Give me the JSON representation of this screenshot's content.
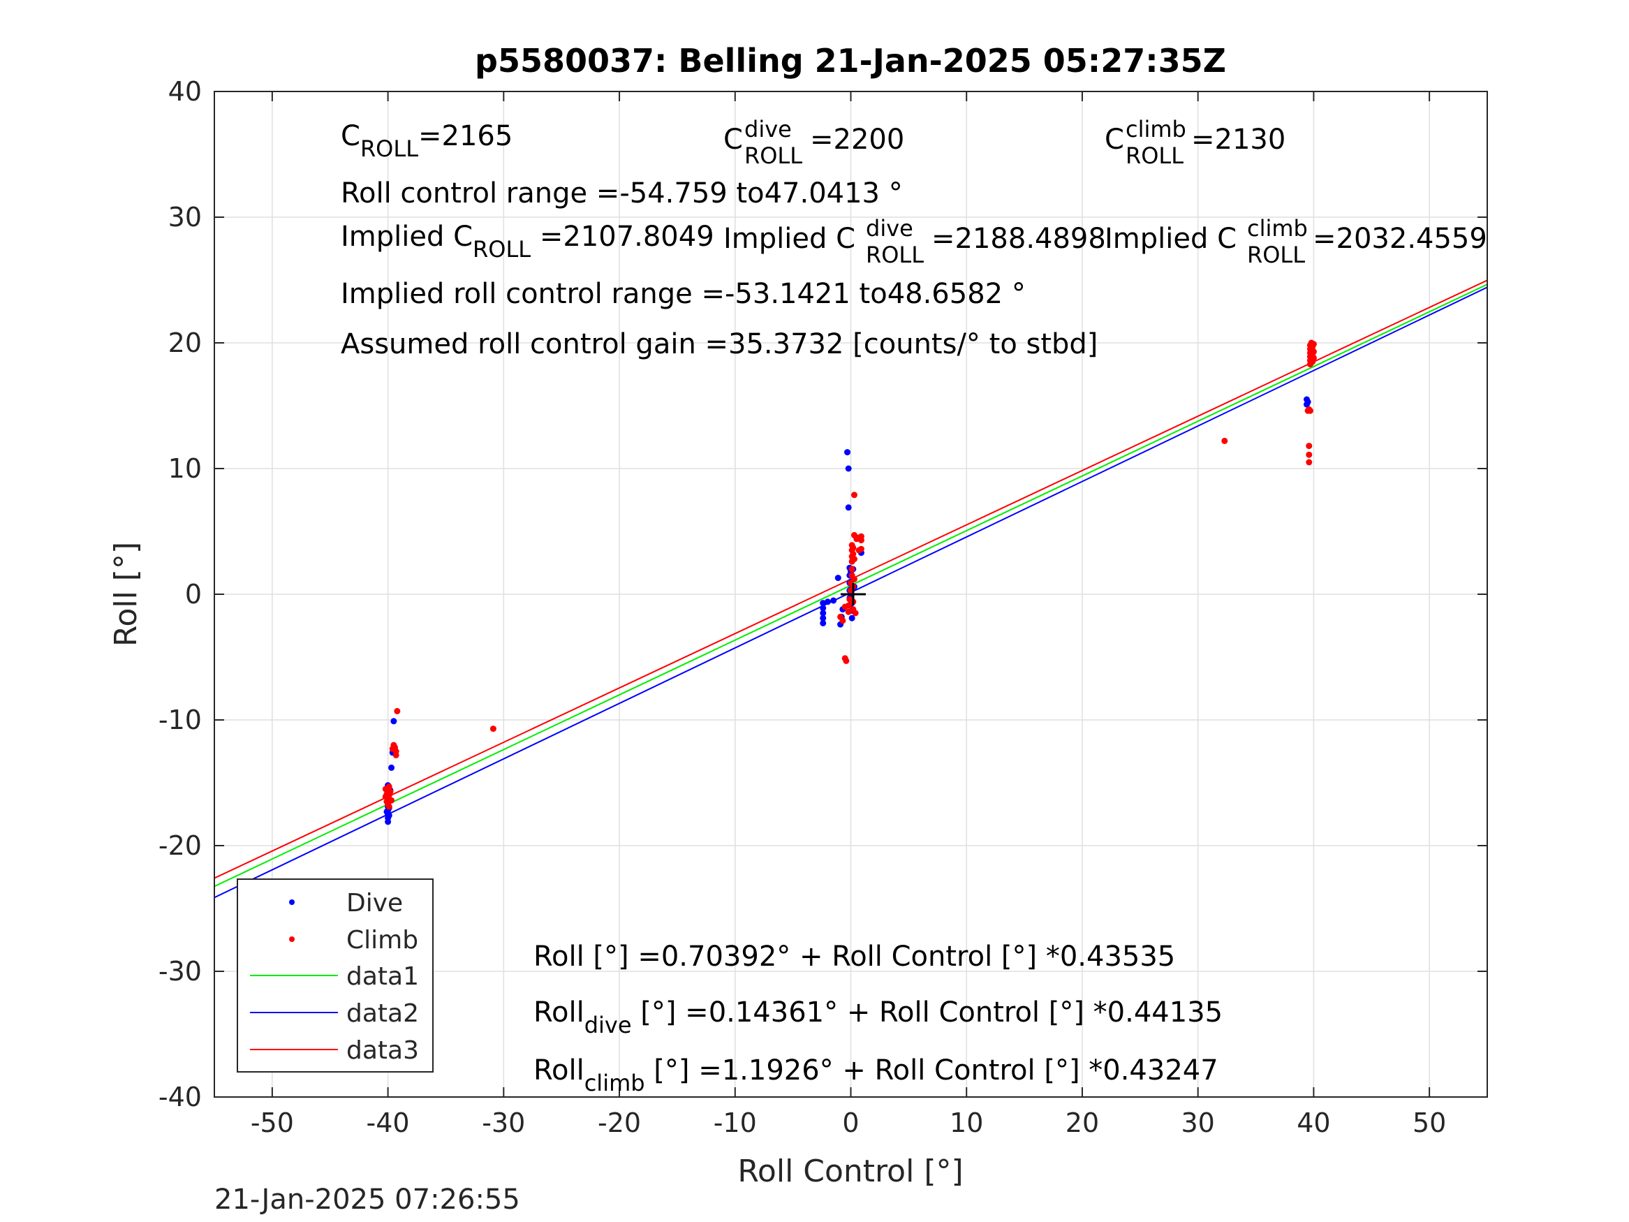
{
  "chart_data": {
    "type": "scatter",
    "title": "p5580037: Belling 21-Jan-2025 05:27:35Z",
    "xlabel": "Roll Control [°]",
    "ylabel": "Roll [°]",
    "xlim": [
      -55,
      55
    ],
    "ylim": [
      -40,
      40
    ],
    "xticks": [
      -50,
      -40,
      -30,
      -20,
      -10,
      0,
      10,
      20,
      30,
      40,
      50
    ],
    "yticks": [
      -40,
      -30,
      -20,
      -10,
      0,
      10,
      20,
      30,
      40
    ],
    "grid": true,
    "legend_position": "bottom-left",
    "timestamp": "21-Jan-2025 07:26:55",
    "annotations": {
      "croll": {
        "base": "C",
        "sub": "ROLL",
        "value": "=2165"
      },
      "croll_dive": {
        "base": "C",
        "sup": "dive",
        "sub": "ROLL",
        "value": " =2200"
      },
      "croll_climb": {
        "base": "C",
        "sup": "climb",
        "sub": "ROLL",
        "value": " =2130"
      },
      "range": "Roll control range =-54.759 to47.0413 °",
      "implied_croll": {
        "prefix": "Implied C",
        "sub": "ROLL",
        "value": " =2107.8049"
      },
      "implied_croll_dive": {
        "prefix": "Implied C",
        "sup": "dive",
        "sub": "ROLL",
        "value": " =2188.4898"
      },
      "implied_croll_climb": {
        "prefix": "Implied C",
        "sup": "climb",
        "sub": "ROLL",
        "value": " =2032.4559"
      },
      "implied_range": "Implied roll control range =-53.1421 to48.6582 °",
      "gain": "Assumed roll control gain =35.3732 [counts/° to stbd]",
      "fit_all": "Roll [°] =0.70392° + Roll Control [°] *0.43535",
      "fit_dive": {
        "prefix": "Roll",
        "sub": "dive",
        "rest": " [°] =0.14361° + Roll Control [°] *0.44135"
      },
      "fit_climb": {
        "prefix": "Roll",
        "sub": "climb",
        "rest": " [°] =1.1926° + Roll Control [°] *0.43247"
      }
    },
    "series": [
      {
        "name": "Dive",
        "kind": "points",
        "color": "#0000ff",
        "points": [
          [
            -40.0,
            -15.2
          ],
          [
            -40.0,
            -15.8
          ],
          [
            -40.0,
            -16.2
          ],
          [
            -40.0,
            -16.6
          ],
          [
            -40.0,
            -16.9
          ],
          [
            -40.0,
            -17.2
          ],
          [
            -40.0,
            -17.5
          ],
          [
            -40.0,
            -17.8
          ],
          [
            -40.0,
            -18.1
          ],
          [
            -39.9,
            -16.4
          ],
          [
            -39.9,
            -17.0
          ],
          [
            -39.9,
            -17.6
          ],
          [
            -40.1,
            -16.0
          ],
          [
            -40.1,
            -17.3
          ],
          [
            -39.7,
            -13.8
          ],
          [
            -39.6,
            -12.6
          ],
          [
            -39.5,
            -10.1
          ],
          [
            -39.8,
            -15.6
          ],
          [
            -2.4,
            -0.7
          ],
          [
            -2.4,
            -1.1
          ],
          [
            -2.4,
            -1.5
          ],
          [
            -2.4,
            -1.9
          ],
          [
            -2.4,
            -2.3
          ],
          [
            -2.0,
            -0.6
          ],
          [
            -1.5,
            -0.5
          ],
          [
            -1.1,
            1.3
          ],
          [
            -0.9,
            -2.4
          ],
          [
            -0.8,
            -1.8
          ],
          [
            -0.7,
            -1.2
          ],
          [
            -0.3,
            11.3
          ],
          [
            -0.2,
            10.0
          ],
          [
            -0.2,
            6.9
          ],
          [
            -0.1,
            2.1
          ],
          [
            -0.1,
            1.5
          ],
          [
            -0.1,
            0.9
          ],
          [
            -0.1,
            0.3
          ],
          [
            -0.1,
            -0.3
          ],
          [
            0.0,
            1.8
          ],
          [
            0.0,
            1.0
          ],
          [
            0.0,
            0.4
          ],
          [
            0.0,
            -0.2
          ],
          [
            0.0,
            -0.8
          ],
          [
            0.1,
            -1.3
          ],
          [
            0.1,
            -1.9
          ],
          [
            0.2,
            2.0
          ],
          [
            0.3,
            0.6
          ],
          [
            0.9,
            3.3
          ],
          [
            39.4,
            15.5
          ],
          [
            39.4,
            15.1
          ],
          [
            39.5,
            15.3
          ]
        ]
      },
      {
        "name": "Climb",
        "kind": "points",
        "color": "#ff0000",
        "points": [
          [
            -40.2,
            -15.5
          ],
          [
            -40.1,
            -15.9
          ],
          [
            -40.0,
            -16.3
          ],
          [
            -39.9,
            -16.0
          ],
          [
            -40.0,
            -16.7
          ],
          [
            -39.8,
            -15.7
          ],
          [
            -40.1,
            -16.5
          ],
          [
            -39.9,
            -15.3
          ],
          [
            -40.2,
            -16.1
          ],
          [
            -40.0,
            -15.8
          ],
          [
            -39.7,
            -16.4
          ],
          [
            -39.9,
            -16.9
          ],
          [
            -39.6,
            -12.3
          ],
          [
            -39.5,
            -12.0
          ],
          [
            -39.3,
            -12.5
          ],
          [
            -39.3,
            -12.8
          ],
          [
            -39.4,
            -12.2
          ],
          [
            -39.2,
            -9.3
          ],
          [
            -30.9,
            -10.7
          ],
          [
            -0.9,
            -1.8
          ],
          [
            -0.7,
            -2.1
          ],
          [
            -0.5,
            -1.0
          ],
          [
            -0.5,
            -5.1
          ],
          [
            -0.4,
            -5.3
          ],
          [
            -0.2,
            -1.4
          ],
          [
            -0.2,
            -0.9
          ],
          [
            -0.1,
            -0.4
          ],
          [
            0.0,
            0.3
          ],
          [
            0.0,
            0.9
          ],
          [
            0.1,
            1.5
          ],
          [
            0.1,
            2.0
          ],
          [
            0.1,
            2.6
          ],
          [
            0.1,
            3.0
          ],
          [
            0.1,
            3.5
          ],
          [
            0.1,
            3.9
          ],
          [
            0.2,
            -1.2
          ],
          [
            0.2,
            -0.6
          ],
          [
            0.2,
            0.6
          ],
          [
            0.3,
            1.2
          ],
          [
            0.3,
            7.9
          ],
          [
            0.3,
            4.7
          ],
          [
            0.4,
            -1.5
          ],
          [
            0.2,
            3.2
          ],
          [
            0.3,
            2.8
          ],
          [
            0.2,
            3.7
          ],
          [
            0.5,
            4.4
          ],
          [
            0.6,
            4.5
          ],
          [
            0.7,
            3.5
          ],
          [
            0.9,
            4.6
          ],
          [
            0.9,
            4.3
          ],
          [
            0.9,
            3.6
          ],
          [
            32.3,
            12.2
          ],
          [
            39.5,
            14.6
          ],
          [
            39.6,
            14.7
          ],
          [
            39.7,
            14.6
          ],
          [
            39.6,
            11.8
          ],
          [
            39.6,
            11.1
          ],
          [
            39.6,
            10.5
          ],
          [
            39.7,
            18.3
          ],
          [
            39.7,
            18.6
          ],
          [
            39.7,
            18.9
          ],
          [
            39.7,
            19.2
          ],
          [
            39.7,
            19.5
          ],
          [
            39.7,
            19.8
          ],
          [
            39.8,
            20.0
          ],
          [
            39.9,
            18.5
          ],
          [
            39.9,
            19.0
          ],
          [
            39.9,
            19.4
          ],
          [
            39.9,
            19.7
          ],
          [
            40.0,
            19.9
          ],
          [
            40.0,
            19.3
          ],
          [
            40.0,
            18.8
          ]
        ]
      },
      {
        "name": "data1",
        "kind": "line",
        "color": "#00ee00",
        "x": [
          -55,
          55
        ],
        "y": [
          -23.24,
          24.65
        ]
      },
      {
        "name": "data2",
        "kind": "line",
        "color": "#0000ff",
        "x": [
          -55,
          55
        ],
        "y": [
          -24.13,
          24.42
        ]
      },
      {
        "name": "data3",
        "kind": "line",
        "color": "#ff0000",
        "x": [
          -55,
          55
        ],
        "y": [
          -22.59,
          24.98
        ]
      }
    ]
  }
}
